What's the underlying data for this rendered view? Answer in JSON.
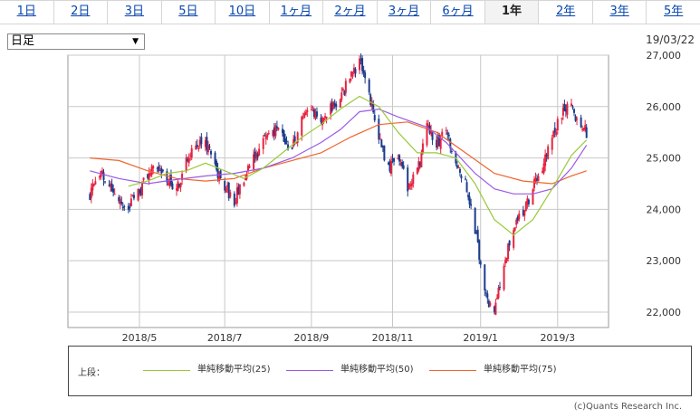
{
  "tabs": [
    "1日",
    "2日",
    "3日",
    "5日",
    "10日",
    "1ヶ月",
    "2ヶ月",
    "3ヶ月",
    "6ヶ月",
    "1年",
    "2年",
    "3年",
    "5年"
  ],
  "active_tab": "1年",
  "period_select": {
    "value": "日足"
  },
  "date": "19/03/22",
  "legend": {
    "title": "上段：",
    "items": [
      {
        "label": "単純移動平均(25)",
        "color": "#99c93a"
      },
      {
        "label": "単純移動平均(50)",
        "color": "#9b59e6"
      },
      {
        "label": "単純移動平均(75)",
        "color": "#f0642d"
      }
    ]
  },
  "copyright": "(c)Quants Research Inc.",
  "colors": {
    "up": "#e8213e",
    "down": "#1b3c8c",
    "grid": "#c8c8c8"
  },
  "chart_data": {
    "type": "candlestick",
    "ylim": [
      21700,
      27000
    ],
    "yticks": [
      22000,
      23000,
      24000,
      25000,
      26000,
      27000
    ],
    "ytick_labels": [
      "22,000",
      "23,000",
      "24,000",
      "25,000",
      "26,000",
      "27,000"
    ],
    "xticks": [
      {
        "label": "2018/5",
        "date": "2018-05-01"
      },
      {
        "label": "2018/7",
        "date": "2018-07-02"
      },
      {
        "label": "2018/9",
        "date": "2018-09-03"
      },
      {
        "label": "2018/11",
        "date": "2018-11-01"
      },
      {
        "label": "2019/1",
        "date": "2019-01-04"
      },
      {
        "label": "2019/3",
        "date": "2019-03-01"
      }
    ],
    "close_path": [
      [
        "2018-03-26",
        24300
      ],
      [
        "2018-04-02",
        24700
      ],
      [
        "2018-04-09",
        24500
      ],
      [
        "2018-04-16",
        24200
      ],
      [
        "2018-04-23",
        24050
      ],
      [
        "2018-04-30",
        24300
      ],
      [
        "2018-05-07",
        24700
      ],
      [
        "2018-05-14",
        24900
      ],
      [
        "2018-05-21",
        24600
      ],
      [
        "2018-05-28",
        24350
      ],
      [
        "2018-06-04",
        24900
      ],
      [
        "2018-06-11",
        25200
      ],
      [
        "2018-06-18",
        25300
      ],
      [
        "2018-06-25",
        24800
      ],
      [
        "2018-07-02",
        24450
      ],
      [
        "2018-07-09",
        24200
      ],
      [
        "2018-07-16",
        24550
      ],
      [
        "2018-07-23",
        25000
      ],
      [
        "2018-07-30",
        25300
      ],
      [
        "2018-08-06",
        25550
      ],
      [
        "2018-08-13",
        25400
      ],
      [
        "2018-08-20",
        25200
      ],
      [
        "2018-08-27",
        25700
      ],
      [
        "2018-09-03",
        25900
      ],
      [
        "2018-09-10",
        25800
      ],
      [
        "2018-09-17",
        26000
      ],
      [
        "2018-09-24",
        26150
      ],
      [
        "2018-10-01",
        26600
      ],
      [
        "2018-10-08",
        26900
      ],
      [
        "2018-10-15",
        26200
      ],
      [
        "2018-10-22",
        25400
      ],
      [
        "2018-10-29",
        24800
      ],
      [
        "2018-11-05",
        25100
      ],
      [
        "2018-11-12",
        24400
      ],
      [
        "2018-11-19",
        24700
      ],
      [
        "2018-11-26",
        25700
      ],
      [
        "2018-12-03",
        25300
      ],
      [
        "2018-12-10",
        25500
      ],
      [
        "2018-12-17",
        25000
      ],
      [
        "2018-12-24",
        24500
      ],
      [
        "2018-12-31",
        23600
      ],
      [
        "2019-01-07",
        22400
      ],
      [
        "2019-01-14",
        21900
      ],
      [
        "2019-01-21",
        23000
      ],
      [
        "2019-01-28",
        23600
      ],
      [
        "2019-02-04",
        24000
      ],
      [
        "2019-02-11",
        24400
      ],
      [
        "2019-02-18",
        24800
      ],
      [
        "2019-02-25",
        25400
      ],
      [
        "2019-03-04",
        25900
      ],
      [
        "2019-03-11",
        26000
      ],
      [
        "2019-03-18",
        25600
      ],
      [
        "2019-03-22",
        25500
      ]
    ],
    "sma_25": [
      [
        "2018-04-23",
        24450
      ],
      [
        "2018-05-07",
        24550
      ],
      [
        "2018-05-21",
        24700
      ],
      [
        "2018-06-04",
        24750
      ],
      [
        "2018-06-18",
        24900
      ],
      [
        "2018-07-02",
        24750
      ],
      [
        "2018-07-16",
        24600
      ],
      [
        "2018-07-30",
        24800
      ],
      [
        "2018-08-13",
        25100
      ],
      [
        "2018-08-27",
        25400
      ],
      [
        "2018-09-10",
        25650
      ],
      [
        "2018-09-24",
        25950
      ],
      [
        "2018-10-08",
        26200
      ],
      [
        "2018-10-22",
        26000
      ],
      [
        "2018-11-05",
        25500
      ],
      [
        "2018-11-19",
        25100
      ],
      [
        "2018-12-03",
        25100
      ],
      [
        "2018-12-17",
        25000
      ],
      [
        "2018-12-31",
        24500
      ],
      [
        "2019-01-14",
        23800
      ],
      [
        "2019-01-28",
        23500
      ],
      [
        "2019-02-11",
        23800
      ],
      [
        "2019-02-25",
        24400
      ],
      [
        "2019-03-11",
        25050
      ],
      [
        "2019-03-22",
        25350
      ]
    ],
    "sma_50": [
      [
        "2018-03-26",
        24750
      ],
      [
        "2018-04-16",
        24600
      ],
      [
        "2018-05-07",
        24500
      ],
      [
        "2018-05-28",
        24580
      ],
      [
        "2018-06-18",
        24650
      ],
      [
        "2018-07-09",
        24700
      ],
      [
        "2018-07-30",
        24800
      ],
      [
        "2018-08-20",
        25000
      ],
      [
        "2018-09-10",
        25300
      ],
      [
        "2018-09-24",
        25550
      ],
      [
        "2018-10-08",
        25900
      ],
      [
        "2018-10-22",
        25950
      ],
      [
        "2018-11-05",
        25800
      ],
      [
        "2018-11-26",
        25600
      ],
      [
        "2018-12-10",
        25300
      ],
      [
        "2018-12-31",
        24700
      ],
      [
        "2019-01-14",
        24400
      ],
      [
        "2019-01-28",
        24300
      ],
      [
        "2019-02-11",
        24300
      ],
      [
        "2019-02-25",
        24400
      ],
      [
        "2019-03-11",
        24800
      ],
      [
        "2019-03-22",
        25250
      ]
    ],
    "sma_75": [
      [
        "2018-03-26",
        25000
      ],
      [
        "2018-04-16",
        24950
      ],
      [
        "2018-05-07",
        24750
      ],
      [
        "2018-05-28",
        24600
      ],
      [
        "2018-06-18",
        24550
      ],
      [
        "2018-07-09",
        24600
      ],
      [
        "2018-07-30",
        24800
      ],
      [
        "2018-08-20",
        24950
      ],
      [
        "2018-09-10",
        25100
      ],
      [
        "2018-10-01",
        25400
      ],
      [
        "2018-10-22",
        25650
      ],
      [
        "2018-11-12",
        25700
      ],
      [
        "2018-12-03",
        25500
      ],
      [
        "2018-12-24",
        25100
      ],
      [
        "2019-01-14",
        24700
      ],
      [
        "2019-02-04",
        24550
      ],
      [
        "2019-02-25",
        24500
      ],
      [
        "2019-03-11",
        24650
      ],
      [
        "2019-03-22",
        24750
      ]
    ]
  }
}
